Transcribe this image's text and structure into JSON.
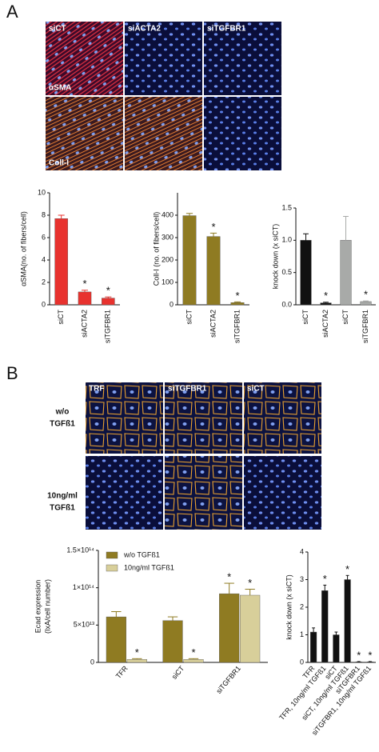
{
  "figure": {
    "panel_labels": [
      "A",
      "B"
    ],
    "a_columns": [
      "siCT",
      "siACTA2",
      "siTGFBR1"
    ],
    "a_rows": [
      "αSMA",
      "Coll-I"
    ],
    "b_columns": [
      "TRF",
      "siTGFBR1",
      "siCT"
    ],
    "b_rows": [
      [
        "w/o",
        "TGFß1"
      ],
      [
        "10ng/ml",
        "TGFß1"
      ]
    ]
  },
  "chart_data": [
    {
      "type": "bar",
      "ylabel": [
        "αSMA(no. of fibers/cell)"
      ],
      "categories": [
        "siCT",
        "siACTA2",
        "siTGFBR1"
      ],
      "values": [
        7.7,
        1.15,
        0.6
      ],
      "errors": [
        0.3,
        0.15,
        0.1
      ],
      "color": "#e8322e",
      "significance": [
        null,
        "*",
        "*"
      ],
      "ylim": [
        0,
        10
      ],
      "yticks": [
        0,
        2,
        4,
        6,
        8,
        10
      ]
    },
    {
      "type": "bar",
      "ylabel": [
        "Coll-I (no. of fibers/cell)"
      ],
      "categories": [
        "siCT",
        "siACTA2",
        "siTGFBR1"
      ],
      "values": [
        398,
        305,
        10
      ],
      "errors": [
        10,
        15,
        3
      ],
      "color": "#8f7b22",
      "significance": [
        null,
        "*",
        "*"
      ],
      "ylim": [
        0,
        500
      ],
      "yticks": [
        0,
        100,
        200,
        300,
        400
      ]
    },
    {
      "type": "bar",
      "ylabel": [
        "knock down (x siCT)"
      ],
      "categories": [
        "siCT",
        "siACTA2",
        "siCT",
        "siTGFBR1"
      ],
      "values": [
        1.0,
        0.03,
        1.0,
        0.05
      ],
      "errors": [
        0.1,
        0.01,
        0.37,
        0.01
      ],
      "colors": [
        "#111111",
        "#111111",
        "#a8aaa8",
        "#a8aaa8"
      ],
      "significance": [
        null,
        "*",
        null,
        "*"
      ],
      "ylim": [
        0,
        1.5
      ],
      "yticks": [
        {
          "value": 0,
          "label": "0.0"
        },
        {
          "value": 0.5,
          "label": "0.5"
        },
        {
          "value": 1,
          "label": "1.0"
        },
        {
          "value": 1.5,
          "label": "1.5"
        }
      ]
    },
    {
      "type": "grouped-bar",
      "ylabel": [
        "Ecad expression",
        "(IxA/cell number)"
      ],
      "categories": [
        "TFR",
        "siCT",
        "siTGFBR1"
      ],
      "series": [
        {
          "name": "w/o TGFß1",
          "color": "#8f7b22",
          "values": [
            61000000000000.0,
            56000000000000.0,
            92000000000000.0
          ],
          "errors": [
            7000000000000.0,
            5000000000000.0,
            14000000000000.0
          ],
          "significance": [
            null,
            null,
            "*"
          ]
        },
        {
          "name": "10ng/ml TGFß1",
          "color": "#d8cf9a",
          "values": [
            4000000000000.0,
            4000000000000.0,
            90000000000000.0
          ],
          "errors": [
            1000000000000.0,
            1000000000000.0,
            8000000000000.0
          ],
          "significance": [
            "*",
            "*",
            "*"
          ]
        }
      ],
      "ylim": [
        0,
        150000000000000.0
      ],
      "yticks": [
        {
          "value": 0,
          "label": "0"
        },
        {
          "value": 50000000000000.0,
          "label": "5×10¹³"
        },
        {
          "value": 100000000000000.0,
          "label": "1×10¹⁴"
        },
        {
          "value": 150000000000000.0,
          "label": "1.5×10¹⁴"
        }
      ]
    },
    {
      "type": "bar",
      "ylabel": [
        "knock down (x siCT)"
      ],
      "categories": [
        "TFR",
        "TFR, 10ng/ml TGFß1",
        "siCT",
        "siCT, 10ng/ml TGFß1",
        "siTGFBR1",
        "siTGFBR1, 10ng/ml TGFß1"
      ],
      "values": [
        1.1,
        2.6,
        1.0,
        3.0,
        0.02,
        0.02
      ],
      "errors": [
        0.15,
        0.2,
        0.1,
        0.15,
        0.01,
        0.01
      ],
      "color": "#111111",
      "significance": [
        null,
        "*",
        null,
        "*",
        "*",
        "*"
      ],
      "ylim": [
        0,
        4
      ],
      "yticks": [
        0,
        1,
        2,
        3,
        4
      ]
    }
  ]
}
